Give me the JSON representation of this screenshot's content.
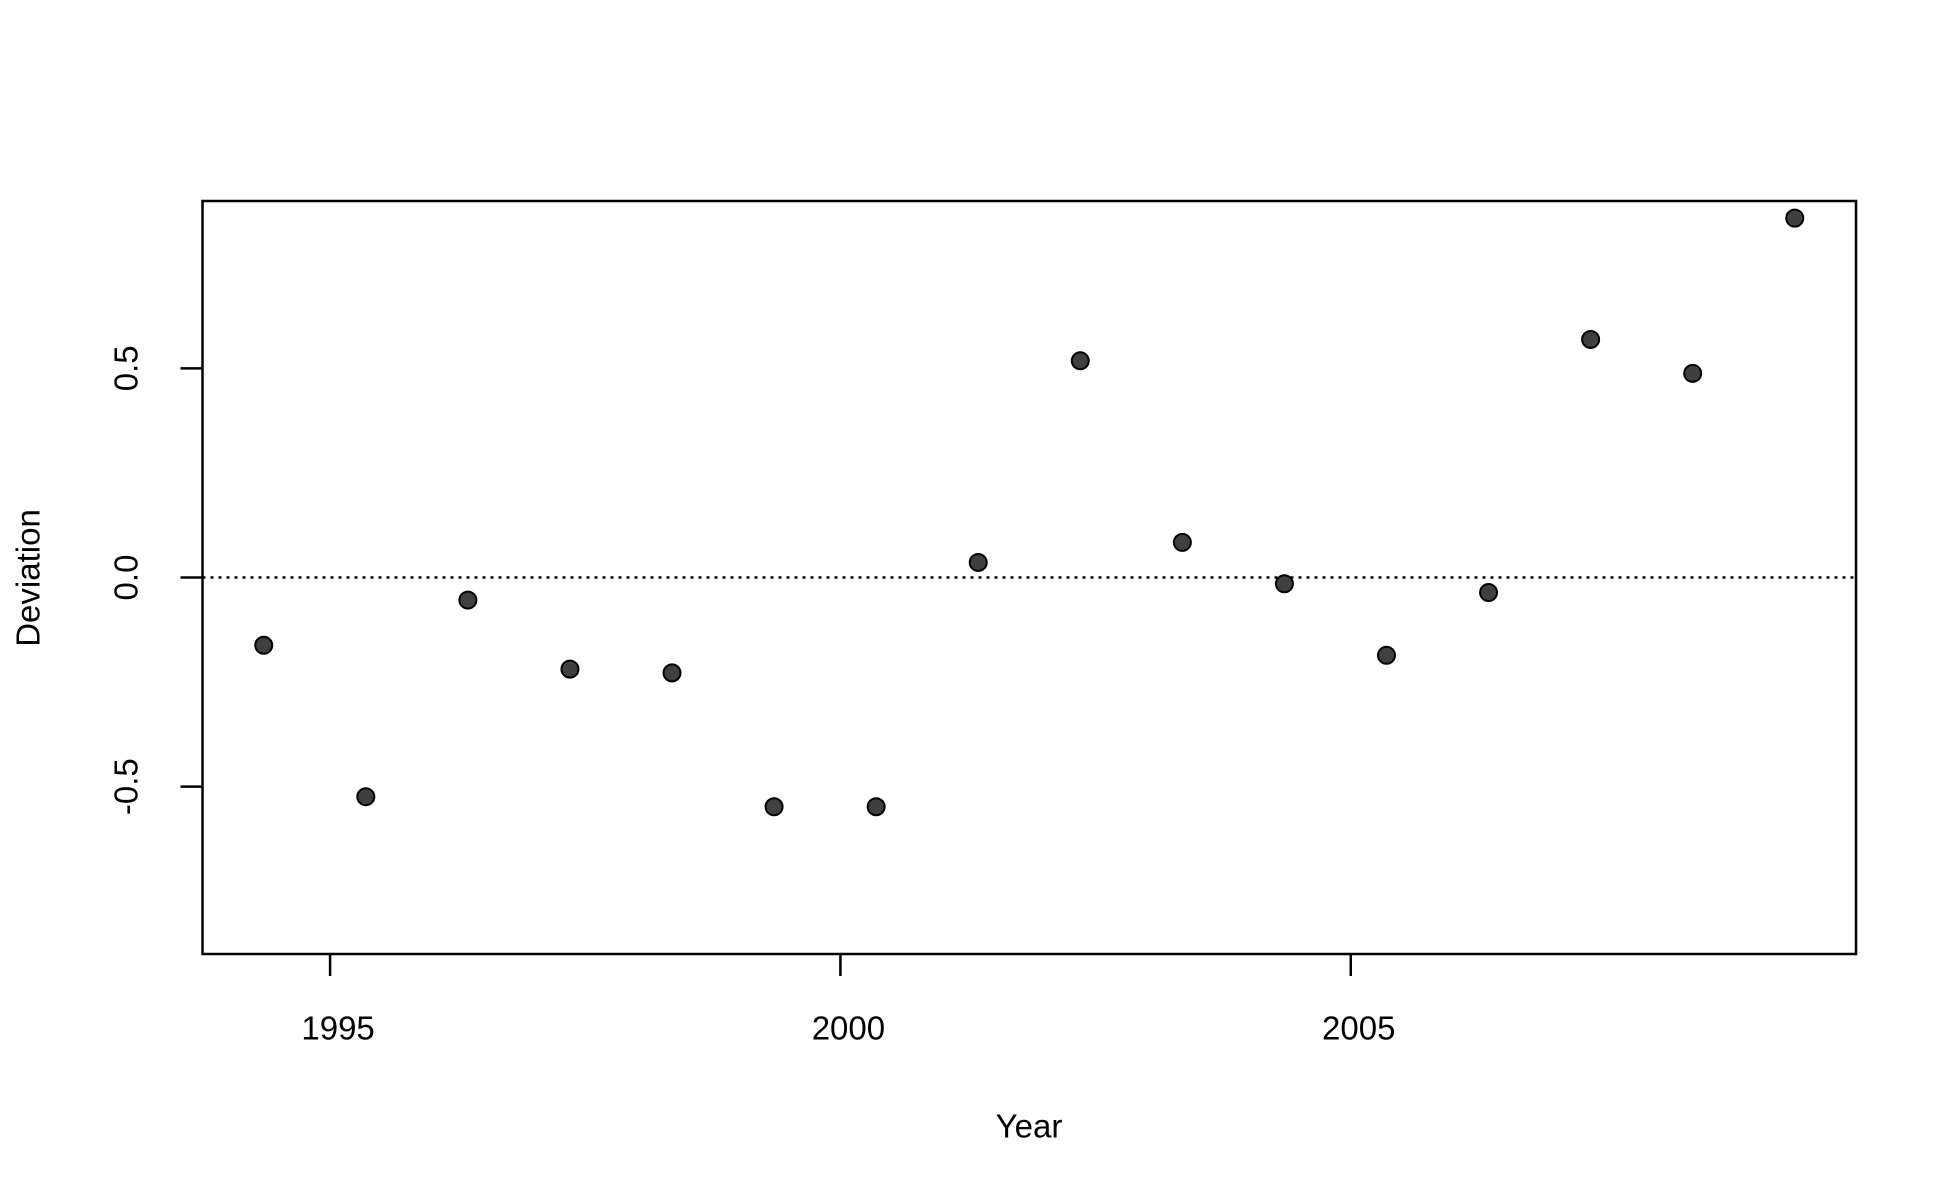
{
  "chart_data": {
    "type": "scatter",
    "x_label": "Year",
    "y_label": "Deviation",
    "x": [
      1994.35,
      1995.35,
      1996.35,
      1997.35,
      1998.35,
      1999.35,
      2000.35,
      2001.35,
      2002.35,
      2003.35,
      2004.35,
      2005.35,
      2006.35,
      2007.35,
      2008.35,
      2009.35
    ],
    "values": [
      -0.162,
      -0.524,
      -0.054,
      -0.219,
      -0.228,
      -0.548,
      -0.548,
      0.036,
      0.518,
      0.084,
      -0.015,
      -0.186,
      -0.036,
      0.569,
      0.488,
      0.859
    ],
    "color": "#404040",
    "xlim": [
      1993.75,
      2009.95
    ],
    "xticks": [
      1995,
      2000,
      2005
    ],
    "ylim": [
      -0.9,
      0.9
    ],
    "yticks": [
      -0.5,
      {
        "value": 0,
        "label": "0.0"
      },
      0.5
    ],
    "hline": 0
  }
}
